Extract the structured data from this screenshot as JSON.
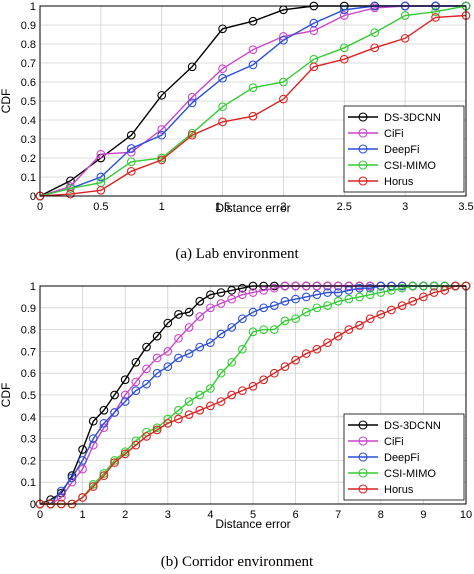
{
  "chart_data": [
    {
      "type": "line",
      "caption": "(a)  Lab environment",
      "xlabel": "Distance error",
      "ylabel": "CDF",
      "xlim": [
        0,
        3.5
      ],
      "ylim": [
        0,
        1
      ],
      "x_ticks": [
        "0",
        "0.5",
        "1",
        "1.5",
        "2",
        "2.5",
        "3",
        "3.5"
      ],
      "y_ticks": [
        "0",
        "0.1",
        "0.2",
        "0.3",
        "0.4",
        "0.5",
        "0.6",
        "0.7",
        "0.8",
        "0.9",
        "1"
      ],
      "grid": true,
      "legend_position": "bottom-right",
      "x": [
        0,
        0.25,
        0.5,
        0.75,
        1,
        1.25,
        1.5,
        1.75,
        2,
        2.25,
        2.5,
        2.75,
        3,
        3.25,
        3.5
      ],
      "series": [
        {
          "name": "DS-3DCNN",
          "color": "#000000",
          "values": [
            0,
            0.08,
            0.2,
            0.32,
            0.53,
            0.68,
            0.88,
            0.92,
            0.98,
            1,
            1,
            1,
            1,
            1,
            1
          ]
        },
        {
          "name": "CiFi",
          "color": "#cc44cc",
          "values": [
            0,
            0.05,
            0.22,
            0.23,
            0.35,
            0.52,
            0.67,
            0.77,
            0.84,
            0.87,
            0.95,
            0.99,
            1,
            1,
            1
          ]
        },
        {
          "name": "DeepFi",
          "color": "#2b4fd8",
          "values": [
            0,
            0.04,
            0.1,
            0.25,
            0.32,
            0.49,
            0.62,
            0.69,
            0.82,
            0.91,
            0.98,
            1,
            1,
            1,
            1
          ]
        },
        {
          "name": "CSI-MIMO",
          "color": "#33cc33",
          "values": [
            0,
            0.04,
            0.07,
            0.18,
            0.2,
            0.33,
            0.47,
            0.57,
            0.6,
            0.72,
            0.78,
            0.86,
            0.95,
            0.97,
            1
          ]
        },
        {
          "name": "Horus",
          "color": "#dd2222",
          "values": [
            0,
            0.01,
            0.03,
            0.13,
            0.19,
            0.32,
            0.39,
            0.42,
            0.51,
            0.68,
            0.72,
            0.78,
            0.83,
            0.94,
            0.95
          ]
        }
      ]
    },
    {
      "type": "line",
      "caption": "(b)  Corridor environment",
      "xlabel": "Distance error",
      "ylabel": "CDF",
      "xlim": [
        0,
        10
      ],
      "ylim": [
        0,
        1
      ],
      "x_ticks": [
        "0",
        "1",
        "2",
        "3",
        "4",
        "5",
        "6",
        "7",
        "8",
        "9",
        "10"
      ],
      "y_ticks": [
        "0",
        "0.1",
        "0.2",
        "0.3",
        "0.4",
        "0.5",
        "0.6",
        "0.7",
        "0.8",
        "0.9",
        "1"
      ],
      "grid": true,
      "legend_position": "bottom-right",
      "series": [
        {
          "name": "DS-3DCNN",
          "color": "#000000",
          "x": [
            0,
            0.25,
            0.5,
            0.75,
            1,
            1.25,
            1.5,
            1.75,
            2,
            2.25,
            2.5,
            2.75,
            3,
            3.25,
            3.5,
            3.75,
            4,
            4.25,
            4.5,
            4.75,
            5,
            5.25,
            5.5,
            5.75,
            6,
            6.25,
            6.5,
            6.75,
            7,
            7.25,
            7.5,
            7.75,
            8,
            8.25,
            8.5,
            8.75,
            9,
            9.25,
            9.5,
            9.75,
            10
          ],
          "values": [
            0,
            0.02,
            0.05,
            0.13,
            0.25,
            0.38,
            0.43,
            0.5,
            0.57,
            0.65,
            0.72,
            0.77,
            0.83,
            0.87,
            0.88,
            0.93,
            0.96,
            0.97,
            0.98,
            0.99,
            1,
            1,
            1,
            1,
            1,
            1,
            1,
            1,
            1,
            1,
            1,
            1,
            1,
            1,
            1,
            1,
            1,
            1,
            1,
            1,
            1
          ]
        },
        {
          "name": "CiFi",
          "color": "#cc44cc",
          "x": [
            0,
            0.25,
            0.5,
            0.75,
            1,
            1.25,
            1.5,
            1.75,
            2,
            2.25,
            2.5,
            2.75,
            3,
            3.25,
            3.5,
            3.75,
            4,
            4.25,
            4.5,
            4.75,
            5,
            5.25,
            5.5,
            5.75,
            6,
            6.25,
            6.5,
            6.75,
            7,
            7.25,
            7.5,
            7.75,
            8,
            8.25,
            8.5,
            8.75,
            9,
            9.25,
            9.5,
            9.75,
            10
          ],
          "values": [
            0,
            0,
            0.03,
            0.1,
            0.16,
            0.27,
            0.35,
            0.42,
            0.5,
            0.56,
            0.62,
            0.67,
            0.7,
            0.76,
            0.81,
            0.86,
            0.9,
            0.92,
            0.94,
            0.96,
            0.97,
            0.98,
            0.99,
            1,
            1,
            1,
            1,
            1,
            1,
            1,
            1,
            1,
            1,
            1,
            1,
            1,
            1,
            1,
            1,
            1,
            1
          ]
        },
        {
          "name": "DeepFi",
          "color": "#2b4fd8",
          "x": [
            0,
            0.25,
            0.5,
            0.75,
            1,
            1.25,
            1.5,
            1.75,
            2,
            2.25,
            2.5,
            2.75,
            3,
            3.25,
            3.5,
            3.75,
            4,
            4.25,
            4.5,
            4.75,
            5,
            5.25,
            5.5,
            5.75,
            6,
            6.25,
            6.5,
            6.75,
            7,
            7.25,
            7.5,
            7.75,
            8,
            8.25,
            8.5,
            8.75,
            9,
            9.25,
            9.5,
            9.75,
            10
          ],
          "values": [
            0,
            0,
            0.06,
            0.12,
            0.2,
            0.3,
            0.37,
            0.42,
            0.47,
            0.52,
            0.55,
            0.6,
            0.63,
            0.67,
            0.69,
            0.72,
            0.74,
            0.78,
            0.81,
            0.85,
            0.88,
            0.9,
            0.91,
            0.93,
            0.94,
            0.95,
            0.96,
            0.97,
            0.97,
            0.98,
            0.99,
            0.99,
            1,
            1,
            1,
            1,
            1,
            1,
            1,
            1,
            1
          ]
        },
        {
          "name": "CSI-MIMO",
          "color": "#33cc33",
          "x": [
            0,
            0.25,
            0.5,
            0.75,
            1,
            1.25,
            1.5,
            1.75,
            2,
            2.25,
            2.5,
            2.75,
            3,
            3.25,
            3.5,
            3.75,
            4,
            4.25,
            4.5,
            4.75,
            5,
            5.25,
            5.5,
            5.75,
            6,
            6.25,
            6.5,
            6.75,
            7,
            7.25,
            7.5,
            7.75,
            8,
            8.25,
            8.5,
            8.75,
            9,
            9.25,
            9.5,
            9.75,
            10
          ],
          "values": [
            0,
            0,
            0,
            0,
            0.03,
            0.09,
            0.14,
            0.2,
            0.24,
            0.29,
            0.33,
            0.35,
            0.39,
            0.43,
            0.47,
            0.5,
            0.53,
            0.6,
            0.65,
            0.71,
            0.79,
            0.8,
            0.8,
            0.84,
            0.85,
            0.88,
            0.9,
            0.91,
            0.93,
            0.94,
            0.95,
            0.96,
            0.97,
            0.98,
            0.99,
            1,
            1,
            1,
            1,
            1,
            1
          ]
        },
        {
          "name": "Horus",
          "color": "#dd2222",
          "x": [
            0,
            0.25,
            0.5,
            0.75,
            1,
            1.25,
            1.5,
            1.75,
            2,
            2.25,
            2.5,
            2.75,
            3,
            3.25,
            3.5,
            3.75,
            4,
            4.25,
            4.5,
            4.75,
            5,
            5.25,
            5.5,
            5.75,
            6,
            6.25,
            6.5,
            6.75,
            7,
            7.25,
            7.5,
            7.75,
            8,
            8.25,
            8.5,
            8.75,
            9,
            9.25,
            9.5,
            9.75,
            10
          ],
          "values": [
            0,
            0,
            0,
            0,
            0.03,
            0.08,
            0.13,
            0.19,
            0.23,
            0.27,
            0.31,
            0.34,
            0.37,
            0.39,
            0.41,
            0.43,
            0.45,
            0.47,
            0.5,
            0.52,
            0.54,
            0.57,
            0.6,
            0.63,
            0.66,
            0.69,
            0.71,
            0.74,
            0.77,
            0.8,
            0.82,
            0.85,
            0.87,
            0.89,
            0.91,
            0.93,
            0.95,
            0.97,
            0.98,
            1,
            1
          ]
        }
      ]
    }
  ]
}
